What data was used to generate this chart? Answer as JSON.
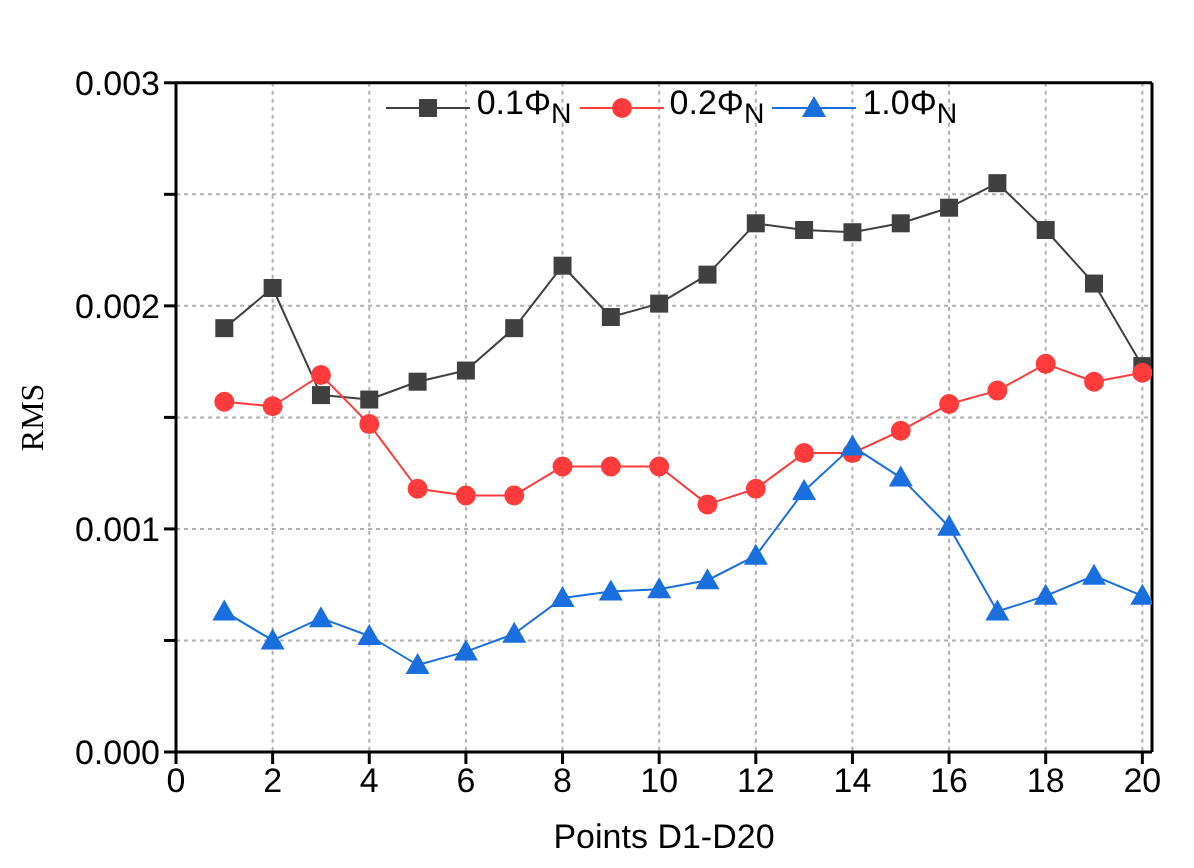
{
  "chart_data": {
    "type": "line",
    "xlabel": "Points D1-D20",
    "ylabel": "RMS",
    "x": [
      1,
      2,
      3,
      4,
      5,
      6,
      7,
      8,
      9,
      10,
      11,
      12,
      13,
      14,
      15,
      16,
      17,
      18,
      19,
      20
    ],
    "series": [
      {
        "name": "0.1Φ$_{N}$",
        "color": "#404040",
        "marker": "square",
        "values": [
          0.0019,
          0.00208,
          0.0016,
          0.00158,
          0.00166,
          0.00171,
          0.0019,
          0.00218,
          0.00195,
          0.00201,
          0.00214,
          0.00237,
          0.00234,
          0.00233,
          0.00237,
          0.00244,
          0.00255,
          0.00234,
          0.0021,
          0.00173
        ]
      },
      {
        "name": "0.2Φ$_{N}$",
        "color": "#ff3b3b",
        "marker": "circle",
        "values": [
          0.00157,
          0.00155,
          0.00169,
          0.00147,
          0.00118,
          0.00115,
          0.00115,
          0.00128,
          0.00128,
          0.00128,
          0.00111,
          0.00118,
          0.00134,
          0.00134,
          0.00144,
          0.00156,
          0.00162,
          0.00174,
          0.00166,
          0.0017
        ]
      },
      {
        "name": "1.0Φ$_{N}$",
        "color": "#1a6fdf",
        "marker": "triangle",
        "values": [
          0.00063,
          0.0005,
          0.0006,
          0.00052,
          0.00039,
          0.00045,
          0.00053,
          0.00069,
          0.00072,
          0.00073,
          0.00077,
          0.00088,
          0.00117,
          0.00137,
          0.00123,
          0.00101,
          0.00063,
          0.0007,
          0.00079,
          0.0007
        ]
      }
    ],
    "xlim": [
      0,
      20.2
    ],
    "xticks": [
      0,
      2,
      4,
      6,
      8,
      10,
      12,
      14,
      16,
      18,
      20
    ],
    "ylim": [
      0,
      0.003
    ],
    "yticks": [
      {
        "value": 0,
        "label": "0.000"
      },
      {
        "value": 0.0005,
        "label": null
      },
      {
        "value": 0.001,
        "label": "0.001"
      },
      {
        "value": 0.0015,
        "label": null
      },
      {
        "value": 0.002,
        "label": "0.002"
      },
      {
        "value": 0.0025,
        "label": null
      },
      {
        "value": 0.003,
        "label": "0.003"
      }
    ],
    "grid": true,
    "legend": "top",
    "line_style": "solid"
  }
}
